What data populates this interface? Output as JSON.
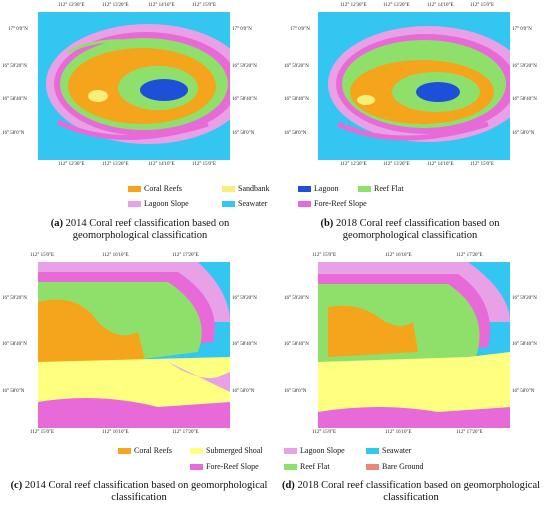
{
  "panels": {
    "a": {
      "caption_id": "(a)",
      "caption_text": "2014 Coral reef classification based on geomorphological classification",
      "top_ticks": [
        "112° 12'30\"E",
        "112° 13'20\"E",
        "112° 14'10\"E",
        "112° 15'0\"E"
      ],
      "bottom_ticks": [
        "112° 12'30\"E",
        "112° 13'20\"E",
        "112° 14'10\"E",
        "112° 15'0\"E"
      ],
      "left_ticks": [
        "17° 0'0\"N",
        "16° 59'20\"N",
        "16° 58'40\"N",
        "16° 58'0\"N"
      ],
      "right_ticks": [
        "17° 0'0\"N",
        "16° 59'20\"N",
        "16° 58'40\"N",
        "16° 58'0\"N"
      ]
    },
    "b": {
      "caption_id": "(b)",
      "caption_text": "2018 Coral reef classification based on geomorphological classification",
      "top_ticks": [
        "112° 12'30\"E",
        "112° 13'20\"E",
        "112° 14'10\"E",
        "112° 15'0\"E"
      ],
      "bottom_ticks": [
        "112° 12'30\"E",
        "112° 13'20\"E",
        "112° 14'10\"E",
        "112° 15'0\"E"
      ],
      "left_ticks": [
        "17° 0'0\"N",
        "16° 59'20\"N",
        "16° 58'40\"N",
        "16° 58'0\"N"
      ],
      "right_ticks": [
        "17° 0'0\"N",
        "16° 59'20\"N",
        "16° 58'40\"N",
        "16° 58'0\"N"
      ]
    },
    "c": {
      "caption_id": "(c)",
      "caption_text": "2014 Coral reef classification based on geomorphological classification",
      "top_ticks": [
        "112° 15'0\"E",
        "112° 16'10\"E",
        "112° 17'20\"E"
      ],
      "bottom_ticks": [
        "112° 15'0\"E",
        "112° 16'10\"E",
        "112° 17'20\"E"
      ],
      "left_ticks": [
        "16° 59'20\"N",
        "16° 58'40\"N",
        "16° 58'0\"N"
      ],
      "right_ticks": [
        "16° 59'20\"N",
        "16° 58'40\"N",
        "16° 58'0\"N"
      ]
    },
    "d": {
      "caption_id": "(d)",
      "caption_text": "2018 Coral reef classification based on geomorphological classification",
      "top_ticks": [
        "112° 15'0\"E",
        "112° 16'10\"E",
        "112° 17'20\"E"
      ],
      "bottom_ticks": [
        "112° 15'0\"E",
        "112° 16'10\"E",
        "112° 17'20\"E"
      ],
      "left_ticks": [
        "16° 59'20\"N",
        "16° 58'40\"N",
        "16° 58'0\"N"
      ],
      "right_ticks": [
        "16° 59'20\"N",
        "16° 58'40\"N",
        "16° 58'0\"N"
      ]
    }
  },
  "legend_top": [
    {
      "label": "Coral Reefs",
      "color": "#f5a51c"
    },
    {
      "label": "Sandbank",
      "color": "#f6f07a"
    },
    {
      "label": "Lagoon",
      "color": "#1e4fd8"
    },
    {
      "label": "Reef Flat",
      "color": "#8fe06a"
    },
    {
      "label": "Lagoon Slope",
      "color": "#e8a0e6"
    },
    {
      "label": "Seawater",
      "color": "#33c6f0"
    },
    {
      "label": "Fore-Reef Slope",
      "color": "#e86ad8"
    }
  ],
  "legend_bottom": [
    {
      "label": "Coral Reefs",
      "color": "#f5a51c"
    },
    {
      "label": "Submerged Shoal",
      "color": "#ffff80"
    },
    {
      "label": "Lagoon Slope",
      "color": "#e8a0e6"
    },
    {
      "label": "Seawater",
      "color": "#33c6f0"
    },
    {
      "label": "Fore-Reef Slope",
      "color": "#e86ad8"
    },
    {
      "label": "Reef Flat",
      "color": "#8fe06a"
    },
    {
      "label": "Bare Ground",
      "color": "#e8887a"
    }
  ]
}
